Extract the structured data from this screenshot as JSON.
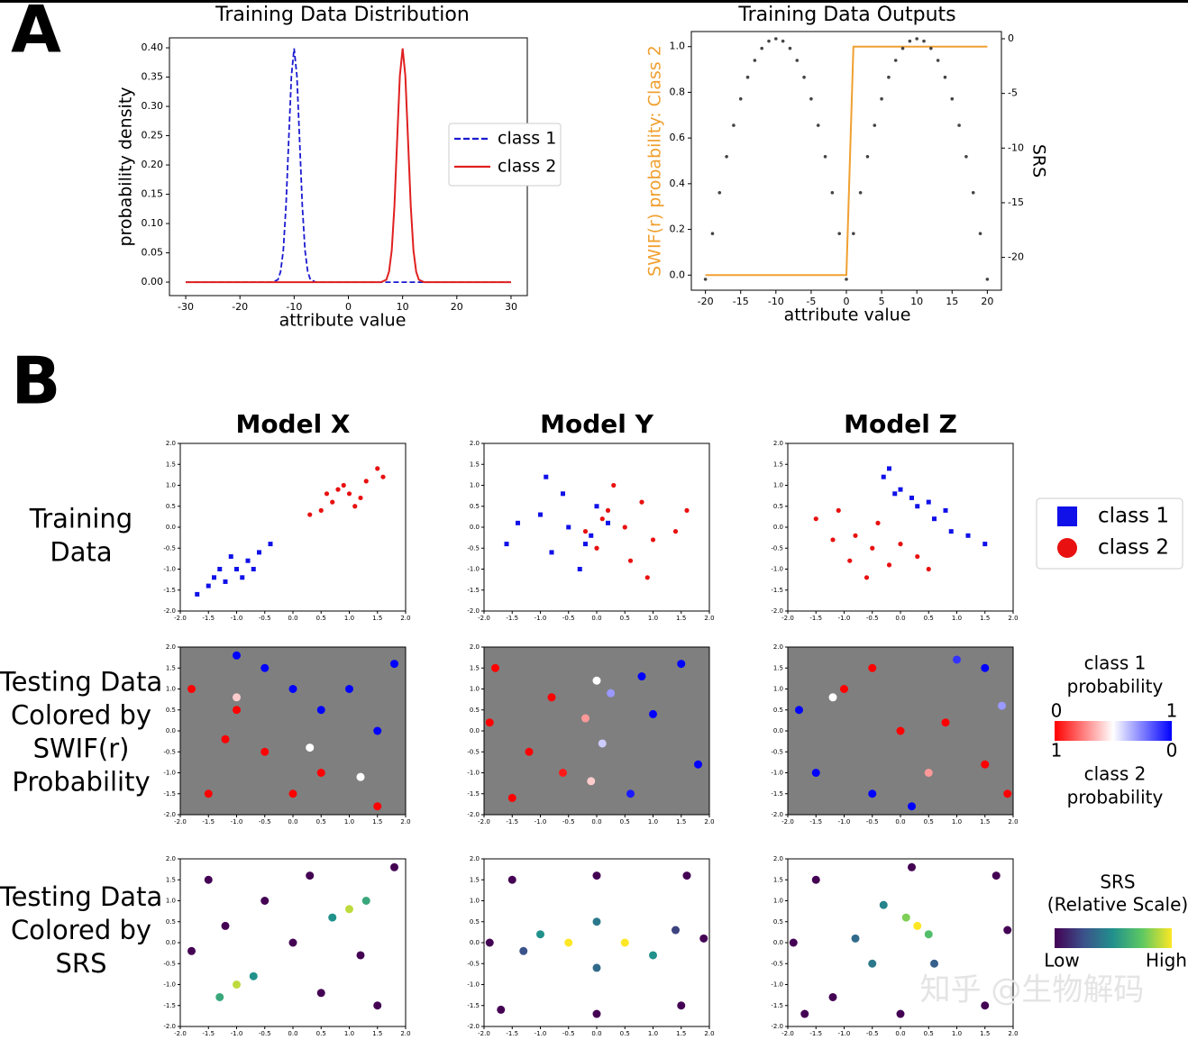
{
  "chart_data": [
    {
      "type": "line",
      "title": "Training Data Distribution",
      "xlabel": "attribute value",
      "ylabel": "probability density",
      "x": [
        -30,
        -14,
        -13,
        -12.5,
        -12,
        -11.5,
        -11,
        -10.5,
        -10,
        -9.5,
        -9,
        -8.5,
        -8,
        -7.5,
        -7,
        -6,
        6,
        7,
        7.5,
        8,
        8.5,
        9,
        9.5,
        10,
        10.5,
        11,
        11.5,
        12,
        12.5,
        13,
        14,
        30
      ],
      "series": [
        {
          "name": "class 1",
          "color": "#1a1ad0",
          "style": "dashed",
          "values": [
            0,
            0,
            0.004,
            0.018,
            0.054,
            0.13,
            0.242,
            0.352,
            0.399,
            0.352,
            0.242,
            0.13,
            0.054,
            0.018,
            0.004,
            0,
            0,
            0,
            0,
            0,
            0,
            0,
            0,
            0,
            0,
            0,
            0,
            0,
            0,
            0,
            0,
            0
          ]
        },
        {
          "name": "class 2",
          "color": "#e02020",
          "style": "line",
          "values": [
            0,
            0,
            0,
            0,
            0,
            0,
            0,
            0,
            0,
            0,
            0,
            0,
            0,
            0,
            0,
            0,
            0,
            0.004,
            0.018,
            0.054,
            0.13,
            0.242,
            0.352,
            0.399,
            0.352,
            0.242,
            0.13,
            0.054,
            0.018,
            0.004,
            0,
            0
          ]
        }
      ],
      "xlim": [
        -33,
        33
      ],
      "ylim": [
        -0.023,
        0.417
      ],
      "xticks": [
        -30,
        -20,
        -10,
        0,
        10,
        20,
        30
      ],
      "yticks": [
        {
          "value": 0,
          "label": "0.00"
        },
        {
          "value": 0.05,
          "label": "0.05"
        },
        {
          "value": 0.1,
          "label": "0.10"
        },
        {
          "value": 0.15,
          "label": "0.15"
        },
        {
          "value": 0.2,
          "label": "0.20"
        },
        {
          "value": 0.25,
          "label": "0.25"
        },
        {
          "value": 0.3,
          "label": "0.30"
        },
        {
          "value": 0.35,
          "label": "0.35"
        },
        {
          "value": 0.4,
          "label": "0.40"
        }
      ],
      "legend": "center right"
    },
    {
      "type": "line",
      "title": "Training Data Outputs",
      "xlabel": "attribute value",
      "ylabel": "SWIF(r) probability: Class 2",
      "ylabel_color": "#f0a030",
      "y2label": "SRS",
      "x": [
        -20,
        -19,
        -18,
        -17,
        -16,
        -15,
        -14,
        -13,
        -12,
        -11,
        -10,
        -9,
        -8,
        -7,
        -6,
        -5,
        -4,
        -3,
        -2,
        -1,
        0,
        1,
        2,
        3,
        4,
        5,
        6,
        7,
        8,
        9,
        10,
        11,
        12,
        13,
        14,
        15,
        16,
        17,
        18,
        19,
        20
      ],
      "series": [
        {
          "color": "#f0a030",
          "style": "line",
          "values": [
            0,
            0,
            0,
            0,
            0,
            0,
            0,
            0,
            0,
            0,
            0,
            0,
            0,
            0,
            0,
            0,
            0,
            0,
            0,
            0,
            0,
            1,
            1,
            1,
            1,
            1,
            1,
            1,
            1,
            1,
            1,
            1,
            1,
            1,
            1,
            1,
            1,
            1,
            1,
            1,
            1
          ]
        },
        {
          "color": "#444444",
          "style": "dots",
          "axis": "y2",
          "values": [
            -22,
            -17.82,
            -14.08,
            -10.78,
            -7.92,
            -5.5,
            -3.52,
            -1.98,
            -0.88,
            -0.22,
            0,
            -0.22,
            -0.88,
            -1.98,
            -3.52,
            -5.5,
            -7.92,
            -10.78,
            -14.08,
            -17.82,
            -22,
            -17.82,
            -14.08,
            -10.78,
            -7.92,
            -5.5,
            -3.52,
            -1.98,
            -0.88,
            -0.22,
            0,
            -0.22,
            -0.88,
            -1.98,
            -3.52,
            -5.5,
            -7.92,
            -10.78,
            -14.08,
            -17.82,
            -22
          ]
        }
      ],
      "xlim": [
        -22,
        22
      ],
      "ylim": [
        -0.066,
        1.066
      ],
      "y2lim": [
        -23,
        0.66
      ],
      "xticks": [
        -20,
        -15,
        -10,
        -5,
        0,
        5,
        10,
        15,
        20
      ],
      "yticks": [
        {
          "value": 0,
          "label": "0.0"
        },
        {
          "value": 0.2,
          "label": "0.2"
        },
        {
          "value": 0.4,
          "label": "0.4"
        },
        {
          "value": 0.6,
          "label": "0.6"
        },
        {
          "value": 0.8,
          "label": "0.8"
        },
        {
          "value": 1,
          "label": "1.0"
        }
      ],
      "y2ticks": [
        0,
        -5,
        -10,
        -15,
        -20
      ]
    }
  ],
  "panel_a_label": "A",
  "panel_b": {
    "label": "B",
    "columns": [
      "Model X",
      "Model Y",
      "Model Z"
    ],
    "rows": [
      [
        "Training",
        "Data"
      ],
      [
        "Testing Data",
        "Colored by",
        "SWIF(r)",
        "Probability"
      ],
      [
        "Testing Data",
        "Colored by",
        "SRS"
      ]
    ],
    "xlim": [
      -2,
      2
    ],
    "ylim": [
      -2,
      2
    ],
    "ticks": [
      {
        "value": -2,
        "label": "-2.0"
      },
      {
        "value": -1.5,
        "label": "-1.5"
      },
      {
        "value": -1,
        "label": "-1.0"
      },
      {
        "value": -0.5,
        "label": "-0.5"
      },
      {
        "value": 0,
        "label": "0.0"
      },
      {
        "value": 0.5,
        "label": "0.5"
      },
      {
        "value": 1,
        "label": "1.0"
      },
      {
        "value": 1.5,
        "label": "1.5"
      },
      {
        "value": 2,
        "label": "2.0"
      }
    ],
    "classes": [
      {
        "name": "class 1",
        "color": "#1010e8",
        "marker": "square"
      },
      {
        "name": "class 2",
        "color": "#e81010",
        "marker": "circle"
      }
    ],
    "training": [
      {
        "series": [
          {
            "x": [
              -1.5,
              -1.2,
              -1.0,
              -0.8,
              -0.6,
              -1.3,
              -0.9,
              -1.1,
              -0.4,
              -1.7,
              -0.7,
              -1.4
            ],
            "y": [
              -1.4,
              -1.3,
              -1.0,
              -0.8,
              -0.6,
              -1.0,
              -1.2,
              -0.7,
              -0.4,
              -1.6,
              -1.0,
              -1.2
            ]
          },
          {
            "x": [
              1.0,
              0.7,
              1.3,
              0.5,
              1.2,
              0.9,
              1.5,
              0.3,
              1.1,
              0.8,
              1.6,
              0.6
            ],
            "y": [
              0.8,
              0.6,
              1.1,
              0.4,
              0.7,
              1.0,
              1.4,
              0.3,
              0.5,
              0.9,
              1.2,
              0.8
            ]
          }
        ]
      },
      {
        "series": [
          {
            "x": [
              -0.5,
              -1.0,
              -0.2,
              -0.8,
              -1.4,
              0,
              -0.6,
              -0.3,
              -1.6,
              0.2,
              -0.9,
              -0.1
            ],
            "y": [
              0,
              0.3,
              -0.4,
              -0.6,
              0.1,
              0.5,
              0.8,
              -1.0,
              -0.4,
              0.1,
              1.2,
              -0.2
            ]
          },
          {
            "x": [
              0.5,
              1.0,
              0.2,
              0.8,
              1.4,
              0,
              0.6,
              0.3,
              1.6,
              -0.2,
              0.9,
              0.1
            ],
            "y": [
              0,
              -0.3,
              0.4,
              0.6,
              -0.1,
              -0.5,
              -0.8,
              1.0,
              0.4,
              -0.1,
              -1.2,
              0.2
            ]
          }
        ]
      },
      {
        "series": [
          {
            "x": [
              0.3,
              0,
              0.6,
              -0.3,
              0.9,
              0.2,
              -0.2,
              1.2,
              0.5,
              0.8,
              1.5,
              -0.1
            ],
            "y": [
              0.5,
              0.9,
              0.2,
              1.2,
              -0.1,
              0.7,
              1.4,
              -0.2,
              0.6,
              0.4,
              -0.4,
              0.8
            ]
          },
          {
            "x": [
              -0.5,
              -0.8,
              -0.2,
              -1.2,
              0,
              -0.6,
              -1.5,
              0.3,
              -0.4,
              -0.9,
              0.5,
              -1.1
            ],
            "y": [
              -0.5,
              -0.2,
              -0.9,
              -0.3,
              -0.4,
              -1.2,
              0.2,
              -0.7,
              0.1,
              -0.8,
              -1.0,
              0.4
            ]
          }
        ]
      }
    ],
    "probability": [
      {
        "x": [
          -1.5,
          -1.0,
          -1.8,
          0.5,
          1.5,
          -0.5,
          0,
          -1.2,
          1.0,
          -0.5,
          1.5,
          0.5,
          1.8,
          0,
          -1.0,
          0.3,
          -1.0,
          1.2
        ],
        "y": [
          -1.5,
          0.5,
          1.0,
          -1.0,
          -1.8,
          -0.5,
          -1.5,
          -0.2,
          1.0,
          1.5,
          0,
          0.5,
          1.6,
          1.0,
          1.8,
          -0.4,
          0.8,
          -1.1
        ],
        "values": [
          1,
          1,
          1,
          1,
          1,
          1,
          1,
          1,
          0,
          0,
          0,
          0,
          0,
          0,
          0,
          0.5,
          0.6,
          0.5
        ]
      },
      {
        "x": [
          -1.8,
          -1.2,
          -0.8,
          -1.5,
          -0.6,
          -0.2,
          -0.1,
          0,
          0.1,
          0.25,
          0.6,
          1.0,
          1.5,
          1.8,
          0.8,
          -1.9
        ],
        "y": [
          1.5,
          -0.5,
          0.8,
          -1.6,
          -1.0,
          0.3,
          -1.2,
          1.2,
          -0.3,
          0.9,
          -1.5,
          0.4,
          1.6,
          -0.8,
          1.3,
          0.2
        ],
        "values": [
          1,
          1,
          1,
          1,
          0.95,
          0.7,
          0.6,
          0.5,
          0.4,
          0.3,
          0.05,
          0,
          0,
          0,
          0,
          1
        ]
      },
      {
        "x": [
          -1.0,
          0,
          0.8,
          1.5,
          -0.5,
          0.5,
          -1.5,
          -0.5,
          -1.8,
          0.2,
          1.5,
          1.0,
          1.8,
          -1.2,
          1.9
        ],
        "y": [
          1.0,
          0,
          0.2,
          -0.8,
          1.5,
          -1.0,
          -1.0,
          -1.5,
          0.5,
          -1.8,
          1.5,
          1.7,
          0.6,
          0.8,
          -1.5
        ],
        "values": [
          1,
          1,
          1,
          1,
          1,
          0.7,
          0,
          0,
          0,
          0,
          0,
          0.1,
          0.3,
          0.5,
          1
        ]
      }
    ],
    "srs": [
      {
        "x": [
          -1.0,
          -1.3,
          -0.7,
          1.0,
          0.7,
          1.3,
          -1.5,
          1.5,
          0,
          -0.5,
          0.5,
          1.8,
          -1.8,
          0.3,
          -1.2,
          1.2
        ],
        "y": [
          -1.0,
          -1.3,
          -0.8,
          0.8,
          0.6,
          1.0,
          1.5,
          -1.5,
          0,
          1.0,
          -1.2,
          1.8,
          -0.2,
          1.6,
          0.4,
          -0.3
        ],
        "values": [
          0.9,
          0.6,
          0.5,
          0.9,
          0.5,
          0.6,
          0,
          0,
          0,
          0,
          0,
          0,
          0,
          0,
          0,
          0
        ]
      },
      {
        "x": [
          -0.5,
          0.5,
          -1.0,
          0,
          1.0,
          0,
          -1.3,
          1.4,
          -1.5,
          1.5,
          1.6,
          -1.7,
          0,
          0,
          -1.9,
          1.9
        ],
        "y": [
          0,
          0,
          0.2,
          0.5,
          -0.3,
          -0.6,
          -0.2,
          0.3,
          1.5,
          -1.5,
          1.6,
          -1.6,
          1.6,
          -1.7,
          0,
          0.1
        ],
        "values": [
          1,
          1,
          0.5,
          0.4,
          0.5,
          0.35,
          0.25,
          0.2,
          0,
          0,
          0,
          0,
          0,
          0,
          0,
          0
        ]
      },
      {
        "x": [
          0.3,
          0.1,
          0.5,
          -0.5,
          -0.8,
          0.6,
          -0.3,
          -1.5,
          1.5,
          1.7,
          -1.7,
          0,
          -1.9,
          1.9,
          0.2,
          -1.2
        ],
        "y": [
          0.4,
          0.6,
          0.2,
          -0.5,
          0.1,
          -0.5,
          0.9,
          1.5,
          -1.5,
          1.6,
          -1.7,
          -1.7,
          0,
          0.3,
          1.8,
          -1.3
        ],
        "values": [
          1,
          0.8,
          0.7,
          0.4,
          0.35,
          0.3,
          0.45,
          0,
          0,
          0,
          0,
          0,
          0,
          0,
          0,
          0
        ]
      }
    ],
    "probability_colorbar": {
      "top_label": [
        "class 1",
        "probability"
      ],
      "top_ticks": [
        0,
        1
      ],
      "bottom_ticks": [
        1,
        0
      ],
      "bottom_label": [
        "class 2",
        "probability"
      ],
      "colors": [
        "#ff0000",
        "#ffffff",
        "#0000ff"
      ],
      "background": "#7f7f7f"
    },
    "srs_colorbar": {
      "title": [
        "SRS",
        "(Relative Scale)"
      ],
      "low": "Low",
      "high": "High",
      "colors": [
        "#440154",
        "#3b528b",
        "#21918c",
        "#5ec962",
        "#fde725"
      ]
    }
  },
  "watermark": "知乎 @生物解码"
}
